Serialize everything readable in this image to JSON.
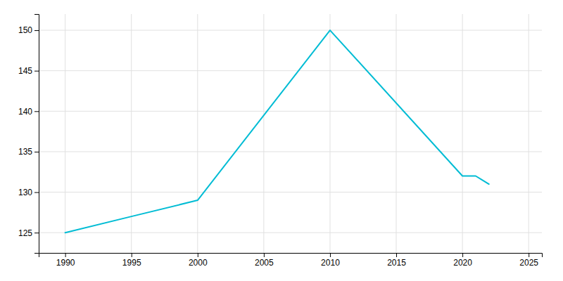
{
  "chart_data": {
    "type": "line",
    "x": [
      1990,
      1995,
      2000,
      2010,
      2020,
      2021,
      2022
    ],
    "values": [
      125,
      127,
      129,
      150,
      132,
      132,
      131
    ],
    "color": "#00BCD4",
    "xlim": [
      1988,
      2026
    ],
    "ylim": [
      122.5,
      152
    ],
    "xticks": [
      1990,
      1995,
      2000,
      2005,
      2010,
      2015,
      2020,
      2025
    ],
    "yticks": [
      125,
      130,
      135,
      140,
      145,
      150
    ],
    "grid": true
  }
}
